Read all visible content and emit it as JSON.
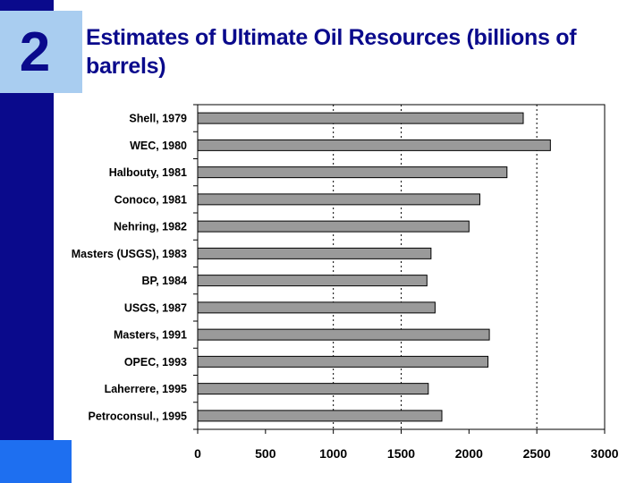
{
  "slide": {
    "number": "2",
    "title": "Estimates of Ultimate Oil Resources (billions of barrels)"
  },
  "colors": {
    "sidebar": "#0a0a8c",
    "badge": "#a9cdf0",
    "accent_square": "#1e6ff0",
    "bar_fill": "#9a9a9a",
    "bar_stroke": "#000000"
  },
  "chart_data": {
    "type": "bar",
    "orientation": "horizontal",
    "title": "Estimates of Ultimate Oil Resources (billions of barrels)",
    "categories": [
      "Shell, 1979",
      "WEC, 1980",
      "Halbouty, 1981",
      "Conoco, 1981",
      "Nehring, 1982",
      "Masters (USGS), 1983",
      "BP, 1984",
      "USGS, 1987",
      "Masters, 1991",
      "OPEC, 1993",
      "Laherrere, 1995",
      "Petroconsul., 1995"
    ],
    "values": [
      2400,
      2600,
      2280,
      2080,
      2000,
      1720,
      1690,
      1750,
      2150,
      2140,
      1700,
      1800
    ],
    "xlim": [
      0,
      3000
    ],
    "xticks": [
      0,
      500,
      1000,
      1500,
      2000,
      2500,
      3000
    ],
    "xtick_labels": [
      "0",
      "500",
      "1000",
      "1500",
      "2000",
      "2500",
      "3000"
    ],
    "gridlines": [
      1000,
      1500,
      2500
    ],
    "grid": "dotted vertical",
    "xlabel": "",
    "ylabel": "",
    "legend": "none"
  }
}
